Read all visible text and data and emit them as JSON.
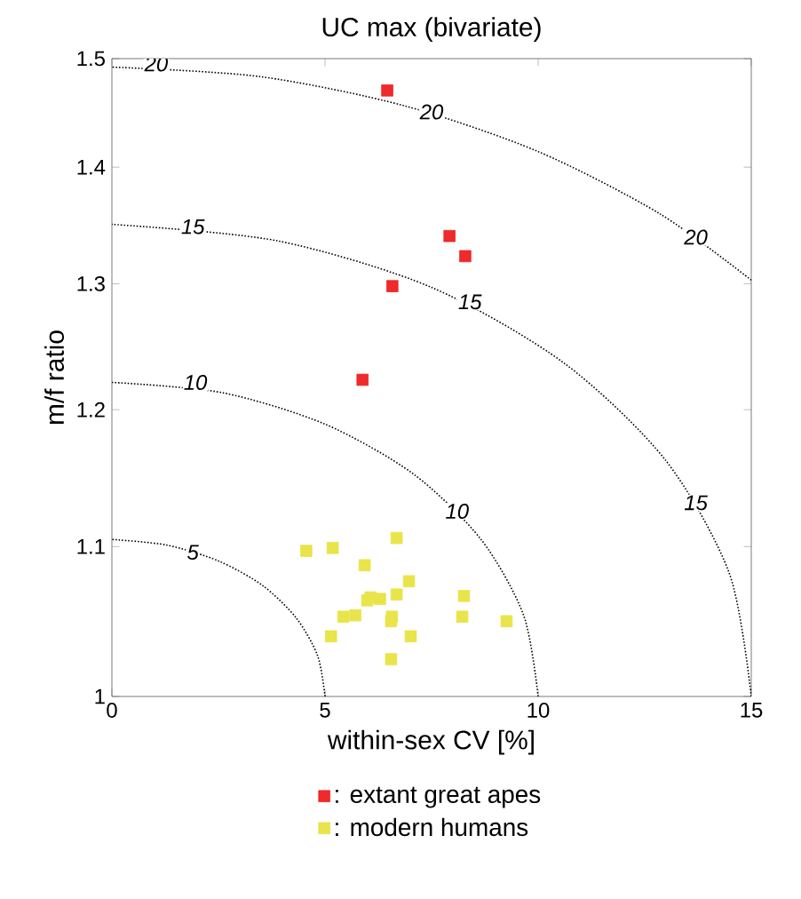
{
  "chart_data": {
    "type": "scatter",
    "title": "UC max (bivariate)",
    "xlabel": "within-sex CV [%]",
    "ylabel": "m/f ratio",
    "xlim": [
      0,
      15
    ],
    "ylim": [
      1,
      1.5
    ],
    "xticks": [
      0,
      5,
      10,
      15
    ],
    "yticks": [
      1,
      1.1,
      1.2,
      1.3,
      1.4,
      1.5
    ],
    "log": "y",
    "marker": "square",
    "legend": "bottom",
    "grid": false,
    "series": [
      {
        "name": ": extant great apes",
        "color": "#ee2a2a",
        "x": [
          6.46,
          7.92,
          8.29,
          6.58,
          5.88
        ],
        "values": [
          1.47,
          1.34,
          1.323,
          1.298,
          1.223
        ]
      },
      {
        "name": ": modern humans",
        "color": "#e8e44a",
        "x": [
          4.56,
          5.18,
          6.68,
          5.93,
          6.97,
          6.68,
          8.26,
          5.99,
          6.29,
          6.07,
          5.43,
          5.71,
          6.57,
          6.55,
          8.22,
          9.26,
          5.14,
          7.01,
          6.55
        ],
        "values": [
          1.097,
          1.099,
          1.106,
          1.087,
          1.076,
          1.067,
          1.066,
          1.063,
          1.064,
          1.065,
          1.052,
          1.053,
          1.052,
          1.049,
          1.052,
          1.049,
          1.039,
          1.039,
          1.024
        ]
      },
      {
        "type": "line",
        "color": "#000000",
        "line_style": "dotted",
        "marker": "none",
        "x": [
          5,
          4.83,
          4.33,
          3.54,
          2.5,
          1.29,
          0
        ],
        "values": [
          1.0,
          1.026,
          1.051,
          1.073,
          1.09,
          1.101,
          1.105
        ]
      },
      {
        "type": "line",
        "color": "#000000",
        "line_style": "dotted",
        "marker": "none",
        "x": [
          10,
          9.66,
          8.66,
          7.07,
          5,
          2.59,
          0
        ],
        "values": [
          1.0,
          1.053,
          1.105,
          1.152,
          1.189,
          1.213,
          1.221
        ]
      },
      {
        "type": "line",
        "color": "#000000",
        "line_style": "dotted",
        "marker": "none",
        "x": [
          15,
          14.49,
          12.99,
          10.61,
          7.5,
          3.88,
          0
        ],
        "values": [
          1.0,
          1.081,
          1.162,
          1.236,
          1.297,
          1.336,
          1.35
        ]
      },
      {
        "type": "line",
        "color": "#000000",
        "line_style": "dotted",
        "marker": "none",
        "x": [
          15,
          12.86,
          10,
          6.84,
          3.47,
          0
        ],
        "values": [
          1.303,
          1.359,
          1.414,
          1.456,
          1.483,
          1.492
        ]
      }
    ],
    "annotations": [
      {
        "text": "20",
        "x": 1.04,
        "y": 1.495
      },
      {
        "text": "20",
        "x": 7.5,
        "y": 1.45
      },
      {
        "text": "20",
        "x": 13.7,
        "y": 1.339
      },
      {
        "text": "15",
        "x": 1.9,
        "y": 1.348
      },
      {
        "text": "15",
        "x": 8.4,
        "y": 1.285
      },
      {
        "text": "15",
        "x": 13.7,
        "y": 1.131
      },
      {
        "text": "10",
        "x": 1.96,
        "y": 1.221
      },
      {
        "text": "10",
        "x": 8.1,
        "y": 1.125
      },
      {
        "text": "5",
        "x": 1.9,
        "y": 1.096
      }
    ]
  }
}
